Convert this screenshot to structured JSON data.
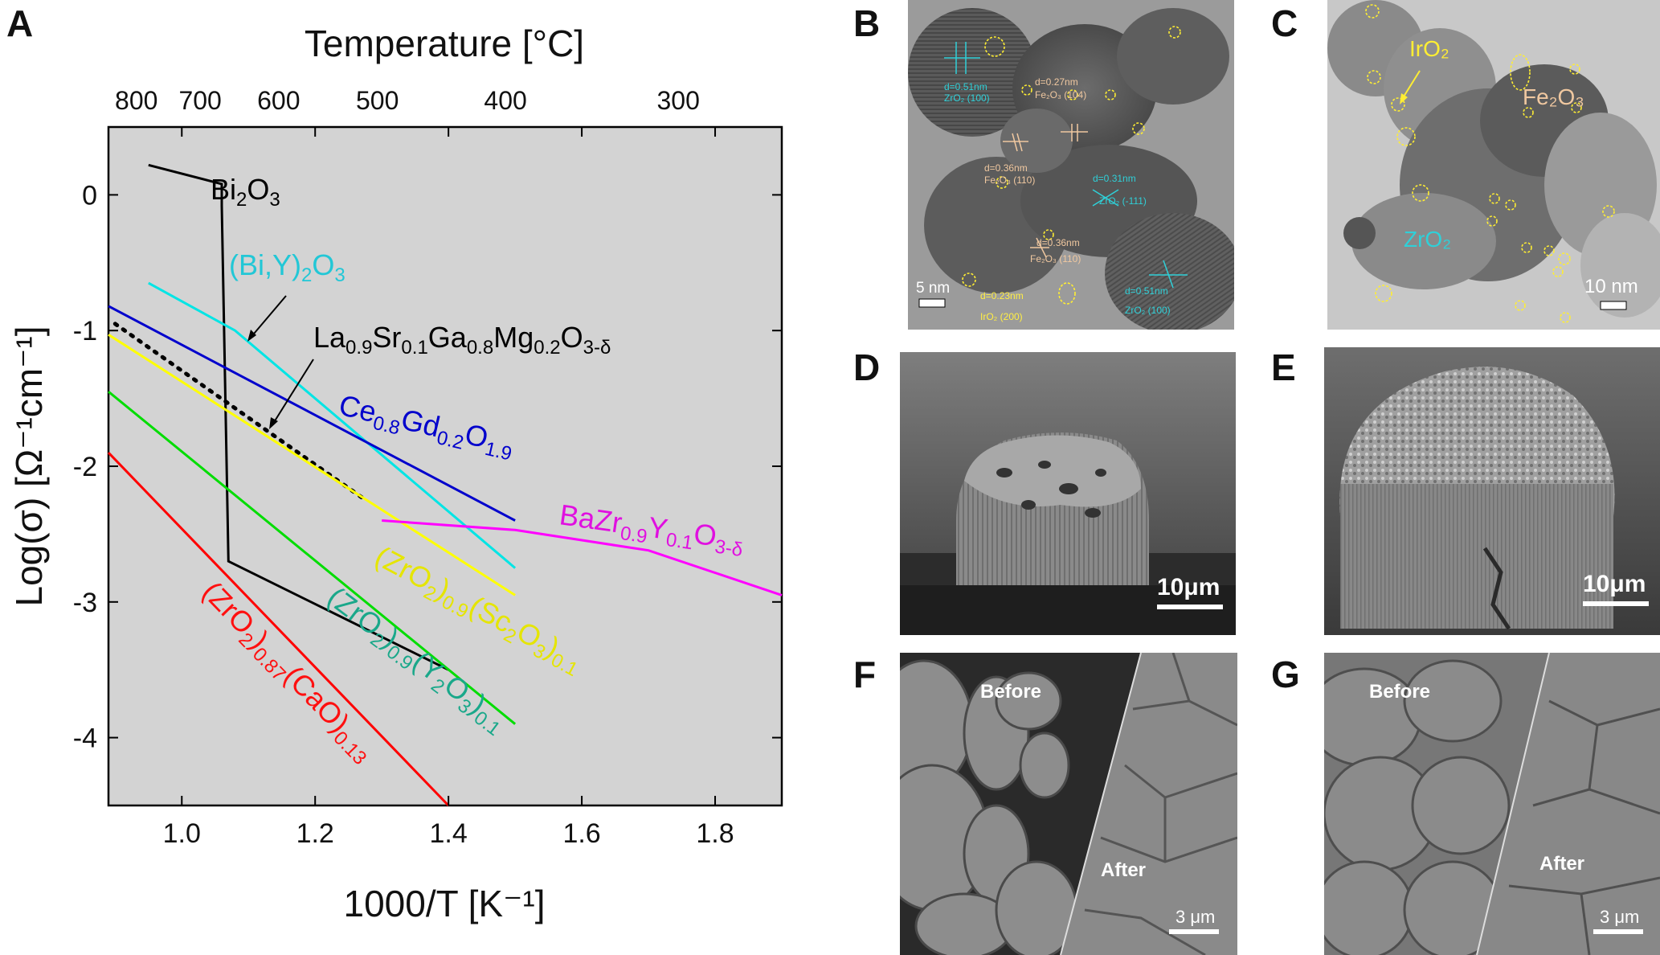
{
  "panels": {
    "A": "A",
    "B": "B",
    "C": "C",
    "D": "D",
    "E": "E",
    "F": "F",
    "G": "G"
  },
  "chart_data": {
    "type": "line",
    "title": "",
    "xlabel": "1000/T   [K⁻¹]",
    "ylabel": "Log(σ)   [Ω⁻¹cm⁻¹]",
    "top_axis_label": "Temperature   [°C]",
    "xlim": [
      0.89,
      1.9
    ],
    "ylim": [
      -4.5,
      0.5
    ],
    "x_ticks": [
      "1.0",
      "1.2",
      "1.4",
      "1.6",
      "1.8"
    ],
    "x_tick_values": [
      1.0,
      1.2,
      1.4,
      1.6,
      1.8
    ],
    "y_ticks": [
      "0",
      "-1",
      "-2",
      "-3",
      "-4"
    ],
    "y_tick_values": [
      0,
      -1,
      -2,
      -3,
      -4
    ],
    "top_ticks": [
      "800",
      "700",
      "600",
      "500",
      "400",
      "300"
    ],
    "top_tick_celsius": [
      800,
      700,
      600,
      500,
      400,
      300
    ],
    "background": "#d3d3d3",
    "series": [
      {
        "color": "#000000",
        "style": "solid",
        "x": [
          0.95,
          1.06,
          1.06,
          1.07,
          1.07,
          1.4
        ],
        "y": [
          0.22,
          0.08,
          -0.08,
          -2.7,
          -2.7,
          -3.5
        ]
      },
      {
        "color": "#00e5e5",
        "style": "solid",
        "x": [
          0.95,
          1.08,
          1.5
        ],
        "y": [
          -0.65,
          -1.0,
          -2.75
        ]
      },
      {
        "color": "#0000cc",
        "style": "solid",
        "x": [
          0.89,
          1.5
        ],
        "y": [
          -0.82,
          -2.4
        ]
      },
      {
        "color": "#000000",
        "style": "dotted",
        "x": [
          0.9,
          1.27
        ],
        "y": [
          -0.95,
          -2.23
        ]
      },
      {
        "color": "#ffff00",
        "style": "solid",
        "x": [
          0.89,
          1.5
        ],
        "y": [
          -1.03,
          -2.95
        ]
      },
      {
        "color": "#00dd00",
        "style": "solid",
        "x": [
          0.89,
          1.5
        ],
        "y": [
          -1.45,
          -3.9
        ]
      },
      {
        "color": "#ff0000",
        "style": "solid",
        "x": [
          0.89,
          1.4
        ],
        "y": [
          -1.9,
          -4.5
        ]
      },
      {
        "color": "#ff00ff",
        "style": "solid",
        "x": [
          1.3,
          1.5,
          1.7,
          1.9
        ],
        "y": [
          -2.4,
          -2.47,
          -2.62,
          -2.95
        ]
      }
    ],
    "annotations": {
      "bi2o3": {
        "parts": [
          [
            "Bi",
            "n"
          ],
          [
            "2",
            "sub"
          ],
          [
            "O",
            "n"
          ],
          [
            "3",
            "sub"
          ]
        ],
        "color": "#000000"
      },
      "biy2o3": {
        "parts": [
          [
            "(Bi,Y)",
            "n"
          ],
          [
            "2",
            "sub"
          ],
          [
            "O",
            "n"
          ],
          [
            "3",
            "sub"
          ]
        ],
        "color": "#22c7d6"
      },
      "lsgm": {
        "parts": [
          [
            "La",
            "n"
          ],
          [
            "0.9",
            "sub"
          ],
          [
            "Sr",
            "n"
          ],
          [
            "0.1",
            "sub"
          ],
          [
            "Ga",
            "n"
          ],
          [
            "0.8",
            "sub"
          ],
          [
            "Mg",
            "n"
          ],
          [
            "0.2",
            "sub"
          ],
          [
            "O",
            "n"
          ],
          [
            "3-δ",
            "sub"
          ]
        ],
        "color": "#000000"
      },
      "cgo": {
        "parts": [
          [
            "Ce",
            "n"
          ],
          [
            "0.8",
            "sub"
          ],
          [
            "Gd",
            "n"
          ],
          [
            "0.2",
            "sub"
          ],
          [
            "O",
            "n"
          ],
          [
            "1.9",
            "sub"
          ]
        ],
        "color": "#0000cc"
      },
      "bzy": {
        "parts": [
          [
            "BaZr",
            "n"
          ],
          [
            "0.9",
            "sub"
          ],
          [
            "Y",
            "n"
          ],
          [
            "0.1",
            "sub"
          ],
          [
            "O",
            "n"
          ],
          [
            "3-δ",
            "sub"
          ]
        ],
        "color": "#e010e0"
      },
      "scsz": {
        "parts": [
          [
            "(ZrO",
            "n"
          ],
          [
            "2",
            "sub"
          ],
          [
            ")",
            "n"
          ],
          [
            "0.9",
            "sub"
          ],
          [
            "(Sc",
            "n"
          ],
          [
            "2",
            "sub"
          ],
          [
            "O",
            "n"
          ],
          [
            "3",
            "sub"
          ],
          [
            ")",
            "n"
          ],
          [
            "0.1",
            "sub"
          ]
        ],
        "color": "#e5e500"
      },
      "ysz": {
        "parts": [
          [
            "(ZrO",
            "n"
          ],
          [
            "2",
            "sub"
          ],
          [
            ")",
            "n"
          ],
          [
            "0.9",
            "sub"
          ],
          [
            "(Y",
            "n"
          ],
          [
            "2",
            "sub"
          ],
          [
            "O",
            "n"
          ],
          [
            "3",
            "sub"
          ],
          [
            ")",
            "n"
          ],
          [
            "0.1",
            "sub"
          ]
        ],
        "color": "#1aa88a"
      },
      "csz": {
        "parts": [
          [
            "(ZrO",
            "n"
          ],
          [
            "2",
            "sub"
          ],
          [
            ")",
            "n"
          ],
          [
            "0.87",
            "sub"
          ],
          [
            "(CaO)",
            "n"
          ],
          [
            "0.13",
            "sub"
          ]
        ],
        "color": "#ff1010"
      }
    }
  },
  "panel_B": {
    "scale": "5 nm",
    "labels": [
      {
        "text": "d=0.51nm",
        "color": "#2fd0d8"
      },
      {
        "text": "ZrO₂ (100)",
        "color": "#2fd0d8"
      },
      {
        "text": "d=0.27nm",
        "color": "#f0c8a0"
      },
      {
        "text": "Fe₂O₃ (104)",
        "color": "#f0c8a0"
      },
      {
        "text": "d=0.36nm",
        "color": "#f0c8a0"
      },
      {
        "text": "Fe₂O₃ (110)",
        "color": "#f0c8a0"
      },
      {
        "text": "d=0.31nm",
        "color": "#2fd0d8"
      },
      {
        "text": "ZrO₂ (-111)",
        "color": "#2fd0d8"
      },
      {
        "text": "d=0.36nm",
        "color": "#f0c8a0"
      },
      {
        "text": "Fe₂O₃ (110)",
        "color": "#f0c8a0"
      },
      {
        "text": "d=0.23nm",
        "color": "#ffee44"
      },
      {
        "text": "IrO₂ (200)",
        "color": "#ffee44"
      },
      {
        "text": "d=0.51nm",
        "color": "#2fd0d8"
      },
      {
        "text": "ZrO₂ (100)",
        "color": "#2fd0d8"
      }
    ]
  },
  "panel_C": {
    "scale": "10 nm",
    "iro2": "IrO₂",
    "fe2o3": "Fe₂O₃",
    "zro2": "ZrO₂"
  },
  "panel_D": {
    "scale": "10μm"
  },
  "panel_E": {
    "scale": "10μm"
  },
  "panel_F": {
    "before": "Before",
    "after": "After",
    "scale": "3 μm"
  },
  "panel_G": {
    "before": "Before",
    "after": "After",
    "scale": "3 μm"
  }
}
